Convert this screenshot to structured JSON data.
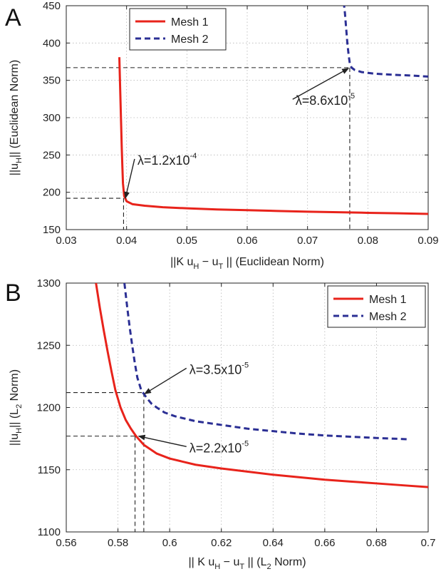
{
  "chart_data": [
    {
      "panel": "A",
      "type": "line",
      "xlabel_parts": [
        "||K u",
        "H",
        " − u",
        "T",
        " || (Euclidean Norm)"
      ],
      "ylabel_parts": [
        "||u",
        "H",
        "|| (Euclidean Norm)"
      ],
      "xlim": [
        0.03,
        0.09
      ],
      "ylim": [
        150,
        450
      ],
      "xticks": [
        0.03,
        0.04,
        0.05,
        0.06,
        0.07,
        0.08,
        0.09
      ],
      "yticks": [
        150,
        200,
        250,
        300,
        350,
        400,
        450
      ],
      "xtick_labels": [
        "0.03",
        "0.04",
        "0.05",
        "0.06",
        "0.07",
        "0.08",
        "0.09"
      ],
      "ytick_labels": [
        "150",
        "200",
        "250",
        "300",
        "350",
        "400",
        "450"
      ],
      "grid": true,
      "legend": "top-left",
      "series": [
        {
          "name": "Mesh 1",
          "color": "#e8231b",
          "style": "solid",
          "x": [
            0.0388,
            0.0389,
            0.039,
            0.0391,
            0.0392,
            0.0393,
            0.0394,
            0.0396,
            0.04,
            0.041,
            0.043,
            0.046,
            0.05,
            0.055,
            0.06,
            0.065,
            0.07,
            0.075,
            0.08,
            0.085,
            0.09
          ],
          "y": [
            381,
            350,
            320,
            290,
            260,
            235,
            212,
            195,
            188,
            184,
            182,
            180,
            178.5,
            177,
            176,
            175,
            174,
            173.3,
            172.5,
            171.8,
            171
          ]
        },
        {
          "name": "Mesh 2",
          "color": "#2b2f94",
          "style": "dashed",
          "x": [
            0.076,
            0.0762,
            0.0764,
            0.0766,
            0.0768,
            0.077,
            0.0773,
            0.0778,
            0.079,
            0.081,
            0.084,
            0.087,
            0.09
          ],
          "y": [
            455,
            440,
            420,
            400,
            385,
            373,
            367,
            364,
            361,
            359,
            357.5,
            356.5,
            355
          ]
        }
      ],
      "guides": [
        {
          "x": 0.0395,
          "y": 192
        },
        {
          "x": 0.077,
          "y": 367
        }
      ],
      "annotations": [
        {
          "lambda": "λ=1.2x10",
          "exp": "-4",
          "text_at": [
            0.0418,
            237
          ],
          "arrow_to": [
            0.0398,
            192
          ]
        },
        {
          "lambda": "λ=8.6x10",
          "exp": "-5",
          "text_at": [
            0.068,
            317
          ],
          "arrow_to": [
            0.0768,
            366
          ]
        }
      ]
    },
    {
      "panel": "B",
      "type": "line",
      "xlabel_parts": [
        "|| K u",
        "H",
        " − u",
        "T",
        " || (L",
        "2",
        " Norm)"
      ],
      "ylabel_parts": [
        "||u",
        "H",
        "|| (L",
        "2",
        " Norm)"
      ],
      "xlim": [
        0.56,
        0.7
      ],
      "ylim": [
        1100,
        1300
      ],
      "xticks": [
        0.56,
        0.58,
        0.6,
        0.62,
        0.64,
        0.66,
        0.68,
        0.7
      ],
      "yticks": [
        1100,
        1150,
        1200,
        1250,
        1300
      ],
      "xtick_labels": [
        "0.56",
        "0.58",
        "0.6",
        "0.62",
        "0.64",
        "0.66",
        "0.68",
        "0.7"
      ],
      "ytick_labels": [
        "1100",
        "1150",
        "1200",
        "1250",
        "1300"
      ],
      "grid": true,
      "legend": "top-right",
      "series": [
        {
          "name": "Mesh 1",
          "color": "#e8231b",
          "style": "solid",
          "x": [
            0.5715,
            0.573,
            0.5745,
            0.576,
            0.5775,
            0.579,
            0.581,
            0.583,
            0.585,
            0.587,
            0.59,
            0.595,
            0.6,
            0.61,
            0.62,
            0.63,
            0.64,
            0.65,
            0.66,
            0.67,
            0.68,
            0.69,
            0.7
          ],
          "y": [
            1300,
            1280,
            1262,
            1245,
            1229,
            1214,
            1200,
            1190,
            1183,
            1177,
            1170,
            1163,
            1159,
            1154,
            1151,
            1148.5,
            1146,
            1144,
            1142,
            1140.5,
            1139,
            1137.5,
            1136
          ]
        },
        {
          "name": "Mesh 2",
          "color": "#2b2f94",
          "style": "dashed",
          "x": [
            0.5825,
            0.5835,
            0.5845,
            0.5855,
            0.5865,
            0.5875,
            0.589,
            0.591,
            0.593,
            0.595,
            0.598,
            0.602,
            0.61,
            0.62,
            0.63,
            0.64,
            0.65,
            0.66,
            0.67,
            0.68,
            0.692
          ],
          "y": [
            1300,
            1282,
            1265,
            1250,
            1236,
            1224,
            1214,
            1208,
            1203,
            1200,
            1196,
            1193,
            1189,
            1186,
            1183,
            1181,
            1179,
            1177.5,
            1176.5,
            1175.5,
            1174.5
          ]
        }
      ],
      "guides": [
        {
          "x": 0.5866,
          "y": 1177
        },
        {
          "x": 0.59,
          "y": 1212
        }
      ],
      "annotations": [
        {
          "lambda": "λ=3.5x10",
          "exp": "-5",
          "text_at": [
            0.6076,
            1227
          ],
          "arrow_to": [
            0.5903,
            1211
          ]
        },
        {
          "lambda": "λ=2.2x10",
          "exp": "-5",
          "text_at": [
            0.6076,
            1164
          ],
          "arrow_to": [
            0.588,
            1177
          ]
        }
      ]
    }
  ]
}
